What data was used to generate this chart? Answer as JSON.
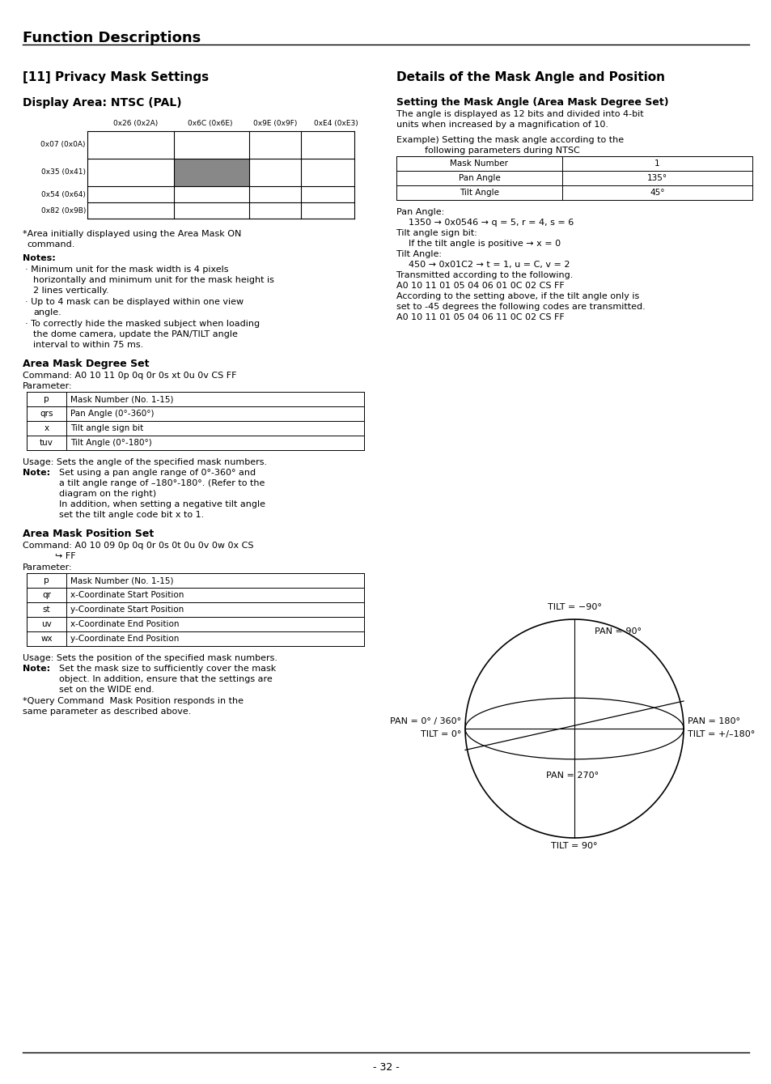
{
  "bg_color": "#ffffff",
  "title": "Function Descriptions",
  "page_number": "- 32 -",
  "grid_col_labels": [
    "0x26 (0x2A)",
    "0x6C (0x6E)",
    "0x9E (0x9F)",
    "0xE4 (0xE3)"
  ],
  "grid_row_labels": [
    "0x07 (0x0A)",
    "0x35 (0x41)",
    "0x54 (0x64)",
    "0x82 (0x9B)"
  ],
  "gray_cell_row": 1,
  "gray_cell_col": 1,
  "param_table1": [
    [
      "p",
      "Mask Number (No. 1-15)"
    ],
    [
      "qrs",
      "Pan Angle (0°-360°)"
    ],
    [
      "x",
      "Tilt angle sign bit"
    ],
    [
      "tuv",
      "Tilt Angle (0°-180°)"
    ]
  ],
  "param_table2": [
    [
      "p",
      "Mask Number (No. 1-15)"
    ],
    [
      "qr",
      "x-Coordinate Start Position"
    ],
    [
      "st",
      "y-Coordinate Start Position"
    ],
    [
      "uv",
      "x-Coordinate End Position"
    ],
    [
      "wx",
      "y-Coordinate End Position"
    ]
  ],
  "degree_table": [
    [
      "Mask Number",
      "1"
    ],
    [
      "Pan Angle",
      "135°"
    ],
    [
      "Tilt Angle",
      "45°"
    ]
  ]
}
